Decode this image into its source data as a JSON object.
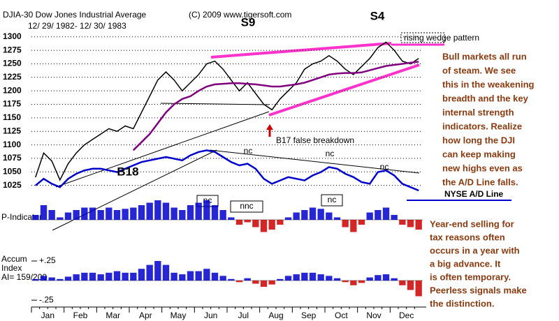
{
  "chart_data": [
    {
      "type": "line",
      "title": "DJIA-30   Dow Jones Industrial Average",
      "subtitle": "12/ 29/ 1982- 12/ 30/ 1983",
      "credit": "(C) 2009 www.tigersoft.com",
      "categories": [
        null,
        "Jan",
        null,
        null,
        null,
        "Feb",
        null,
        null,
        null,
        "Mar",
        null,
        null,
        null,
        "Apr",
        null,
        null,
        null,
        "May",
        null,
        null,
        null,
        "Jun",
        null,
        null,
        null,
        "Jul",
        null,
        null,
        null,
        "Aug",
        null,
        null,
        null,
        "Sep",
        null,
        null,
        null,
        "Oct",
        null,
        null,
        null,
        "Nov",
        null,
        null,
        null,
        "Dec",
        null,
        null
      ],
      "ylim": [
        1000,
        1310
      ],
      "yticks": [
        1025,
        1050,
        1075,
        1100,
        1125,
        1150,
        1175,
        1200,
        1225,
        1250,
        1275,
        1300
      ],
      "y2lim": [
        0,
        100
      ],
      "grid": true,
      "series": [
        {
          "name": "DJIA",
          "color": "#000000",
          "values": [
            1040,
            1085,
            1070,
            1035,
            1065,
            1085,
            1100,
            1110,
            1120,
            1130,
            1125,
            1135,
            1130,
            1160,
            1190,
            1220,
            1235,
            1220,
            1200,
            1215,
            1230,
            1250,
            1255,
            1240,
            1220,
            1200,
            1215,
            1195,
            1175,
            1165,
            1185,
            1200,
            1215,
            1240,
            1250,
            1255,
            1265,
            1255,
            1240,
            1230,
            1245,
            1260,
            1280,
            1290,
            1275,
            1255,
            1250,
            1260
          ]
        },
        {
          "name": "200-day MA",
          "color": "#800080",
          "values": [
            null,
            null,
            null,
            null,
            null,
            null,
            null,
            null,
            null,
            null,
            null,
            null,
            1090,
            1105,
            1120,
            1140,
            1160,
            1175,
            1185,
            1190,
            1200,
            1208,
            1212,
            1213,
            1214,
            1214,
            1213,
            1212,
            1210,
            1208,
            1208,
            1210,
            1212,
            1215,
            1220,
            1225,
            1230,
            1232,
            1233,
            1233,
            1234,
            1238,
            1242,
            1246,
            1248,
            1250,
            1252,
            1254
          ]
        },
        {
          "name": "NYSE A/D Line",
          "color": "#0000cc",
          "axis": "y2",
          "values": [
            8,
            12,
            9,
            7,
            12,
            15,
            17,
            18,
            18,
            17,
            16,
            18,
            20,
            22,
            23,
            24,
            25,
            24,
            23,
            26,
            28,
            29,
            28,
            25,
            22,
            20,
            21,
            18,
            12,
            9,
            11,
            13,
            12,
            11,
            14,
            16,
            19,
            18,
            15,
            13,
            10,
            9,
            16,
            17,
            14,
            9,
            7,
            5
          ]
        }
      ],
      "annotations": [
        "S9",
        "S4",
        "rising wedge pattern",
        "B17  false breakdown",
        "B18",
        "nc",
        "nc",
        "nc",
        "nc",
        "nnc",
        "nc"
      ]
    },
    {
      "type": "bar",
      "title": "P-Indicator",
      "ylim": [
        -100,
        100
      ],
      "values": [
        20,
        60,
        40,
        10,
        30,
        40,
        50,
        50,
        40,
        50,
        40,
        45,
        50,
        60,
        70,
        80,
        70,
        50,
        40,
        60,
        70,
        80,
        60,
        40,
        10,
        -20,
        -10,
        -30,
        -50,
        -40,
        -20,
        10,
        30,
        40,
        50,
        45,
        30,
        10,
        -30,
        -50,
        -20,
        30,
        40,
        50,
        20,
        -20,
        -30,
        -40
      ],
      "colors": {
        "positive": "#0000cc",
        "negative": "#cc0000"
      }
    },
    {
      "type": "bar",
      "title": "Accum",
      "subtitle": "Index",
      "note": "AI= 159/200",
      "ylim": [
        -0.32,
        0.33
      ],
      "yticks": [
        {
          "value": 0.25,
          "label": "+.25"
        },
        {
          "value": -0.25,
          "label": "-.25"
        }
      ],
      "values": [
        0.02,
        0.06,
        0.04,
        0.02,
        0.05,
        0.08,
        0.1,
        0.1,
        0.08,
        0.1,
        0.12,
        0.1,
        0.1,
        0.15,
        0.2,
        0.25,
        0.2,
        0.1,
        0.08,
        0.12,
        0.12,
        0.15,
        0.1,
        0.06,
        0.02,
        -0.02,
        0.03,
        -0.04,
        -0.08,
        -0.05,
        0.02,
        0.06,
        0.08,
        0.1,
        0.1,
        0.08,
        0.06,
        0.03,
        -0.02,
        -0.06,
        -0.03,
        0.04,
        0.07,
        0.08,
        0.03,
        -0.06,
        -0.12,
        -0.2
      ],
      "colors": {
        "positive": "#0000cc",
        "negative": "#cc0000"
      }
    }
  ],
  "notes": [
    [
      "Bull markets all run",
      "of steam.  We see",
      "this in the weakening",
      "breadth and the key",
      "internal strength",
      "indicators.  Realize",
      "how long the DJI",
      "can keep making",
      "new highs even as",
      "the A/D Line falls."
    ],
    [
      "Year-end selling for",
      "tax reasons often",
      "occurs in a year with",
      "a big advance.  It",
      "is often temporary.",
      "Peerless signals make",
      "the distinction."
    ]
  ]
}
